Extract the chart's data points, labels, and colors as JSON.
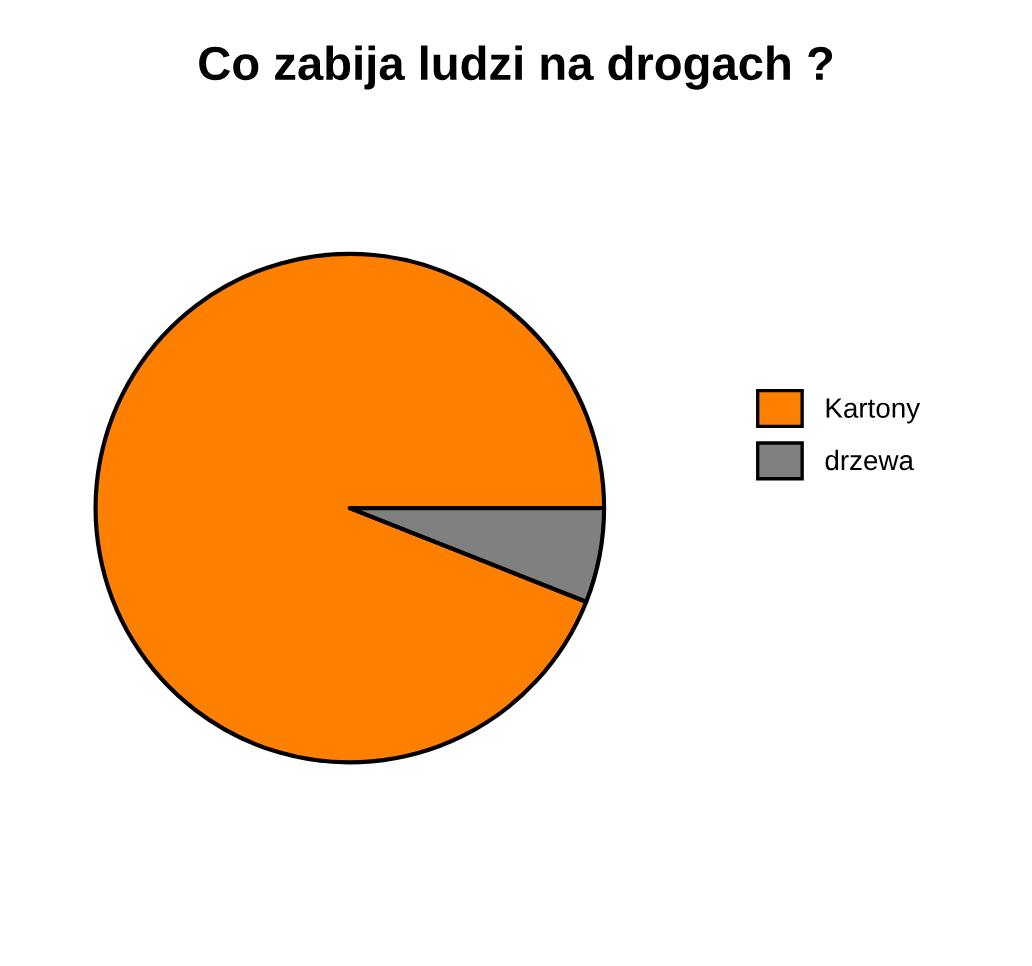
{
  "chart_data": {
    "type": "pie",
    "title": "Co zabija ludzi na drogach ?",
    "categories": [
      "Kartony",
      "drzewa"
    ],
    "values": [
      94,
      6
    ],
    "colors": [
      "#ff8000",
      "#808080"
    ],
    "legend": "right"
  }
}
